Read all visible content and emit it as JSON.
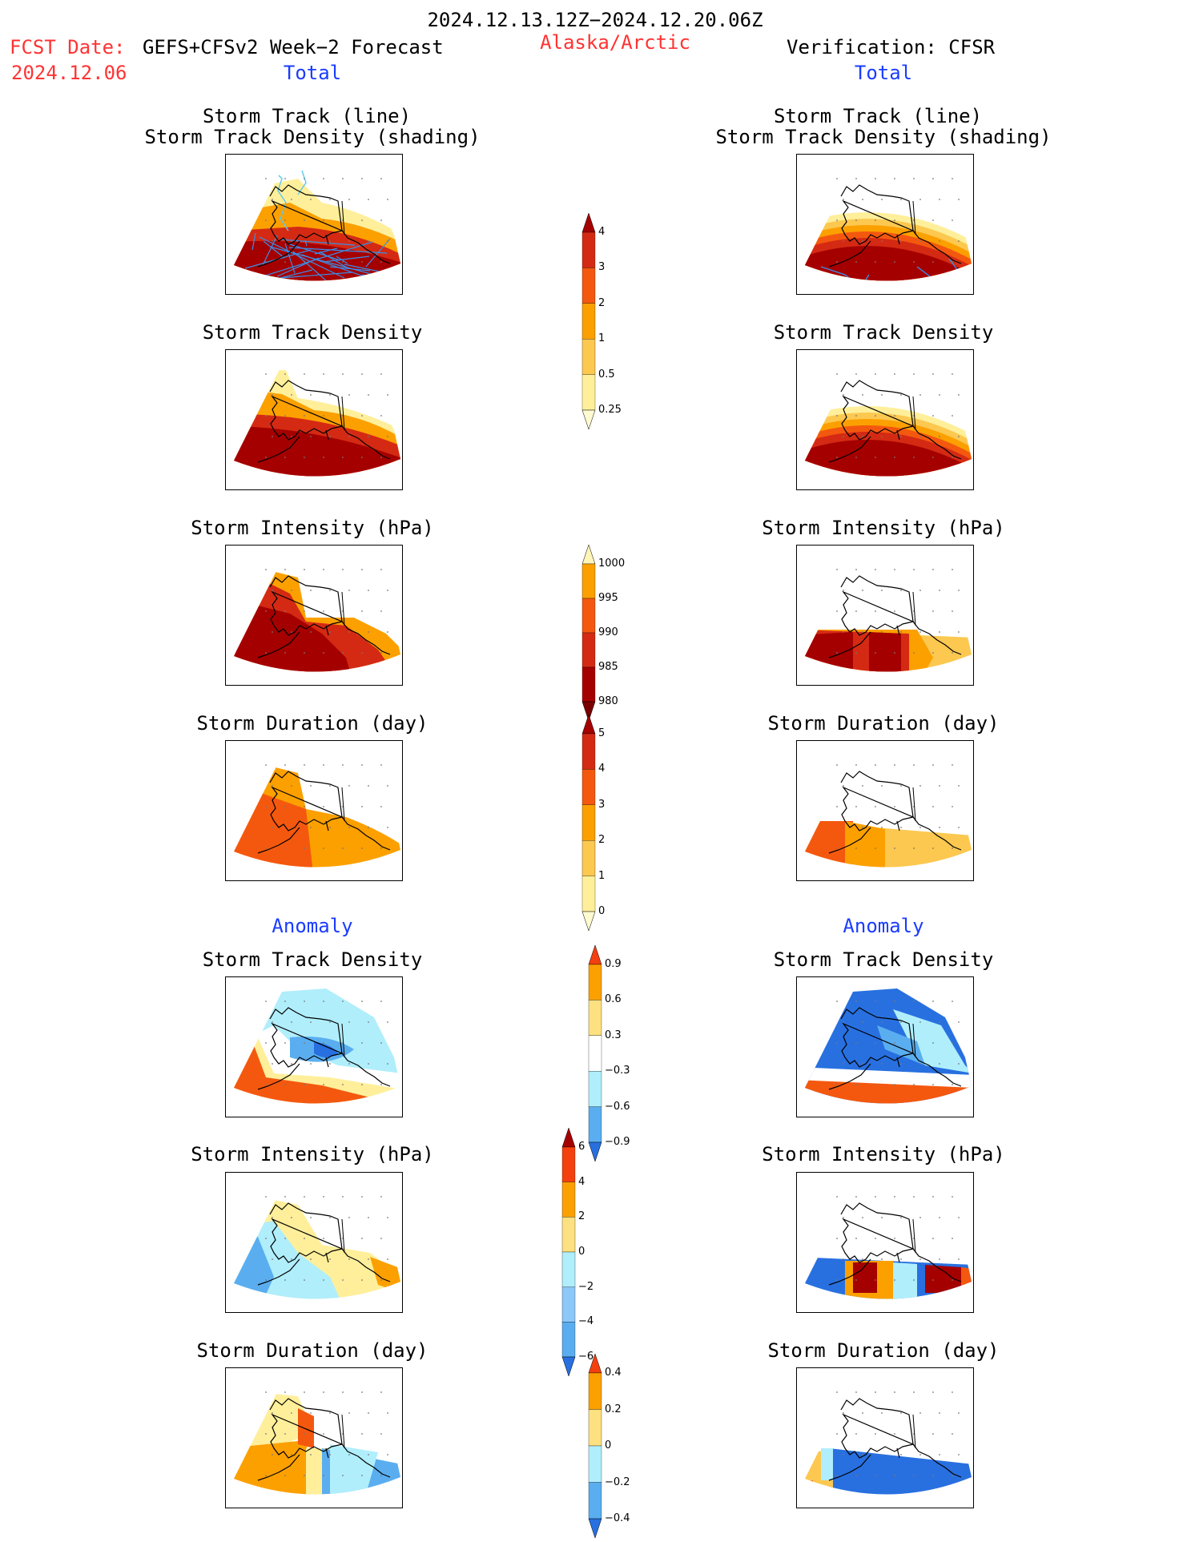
{
  "header": {
    "period": "2024.12.13.12Z−2024.12.20.06Z",
    "fcst_label": "FCST Date:",
    "fcst_model": "GEFS+CFSv2 Week−2 Forecast",
    "fcst_date": "2024.12.06",
    "region": "Alaska/Arctic",
    "verification": "Verification: CFSR"
  },
  "columns": {
    "left_total": "Total",
    "right_total": "Total",
    "left_anomaly": "Anomaly",
    "right_anomaly": "Anomaly"
  },
  "panels": {
    "track_line": "Storm Track (line)",
    "track_shading": "Storm Track Density (shading)",
    "density": "Storm Track Density",
    "intensity": "Storm Intensity (hPa)",
    "duration": "Storm Duration (day)"
  },
  "colorbars": {
    "density_total": {
      "labels": [
        "4",
        "3",
        "2",
        "1",
        "0.5",
        "0.25"
      ],
      "colors": [
        "#a50000",
        "#d42a14",
        "#f4580f",
        "#fca000",
        "#fcc850",
        "#ffef9a",
        "#fffbd0"
      ]
    },
    "intensity_total": {
      "labels": [
        "1000",
        "995",
        "990",
        "985",
        "980"
      ],
      "colors": [
        "#fff5b8",
        "#fca000",
        "#f4580f",
        "#d42a14",
        "#a50000",
        "#7a0000"
      ]
    },
    "duration_total": {
      "labels": [
        "5",
        "4",
        "3",
        "2",
        "1",
        "0"
      ],
      "colors": [
        "#a50000",
        "#d42a14",
        "#f4580f",
        "#fca000",
        "#fcc850",
        "#ffef9a",
        "#fffbd0"
      ]
    },
    "density_anom": {
      "labels": [
        "0.9",
        "0.6",
        "0.3",
        "−0.3",
        "−0.6",
        "−0.9"
      ],
      "colors": [
        "#f4400f",
        "#fca000",
        "#fde080",
        "#ffffff",
        "#b0eefc",
        "#5aaef0",
        "#2870e0"
      ]
    },
    "intensity_anom": {
      "labels": [
        "6",
        "4",
        "2",
        "0",
        "−2",
        "−4",
        "−6"
      ],
      "colors": [
        "#a50000",
        "#f4400f",
        "#fca000",
        "#fde080",
        "#b0eefc",
        "#8cc8f8",
        "#5aaef0",
        "#2870e0"
      ]
    },
    "duration_anom": {
      "labels": [
        "0.4",
        "0.2",
        "0",
        "−0.2",
        "−0.4"
      ],
      "colors": [
        "#f4400f",
        "#fca000",
        "#fde080",
        "#b0eefc",
        "#5aaef0",
        "#2870e0"
      ]
    }
  },
  "map_colors": {
    "dark_red": "#a50000",
    "red": "#d42a14",
    "orange_red": "#f4580f",
    "orange": "#fca000",
    "light_orange": "#fcc850",
    "yellow": "#ffef9a",
    "light_blue": "#b0eefc",
    "mid_blue": "#5aaef0",
    "blue": "#2870e0",
    "track_blue": "#3a8ee8"
  }
}
